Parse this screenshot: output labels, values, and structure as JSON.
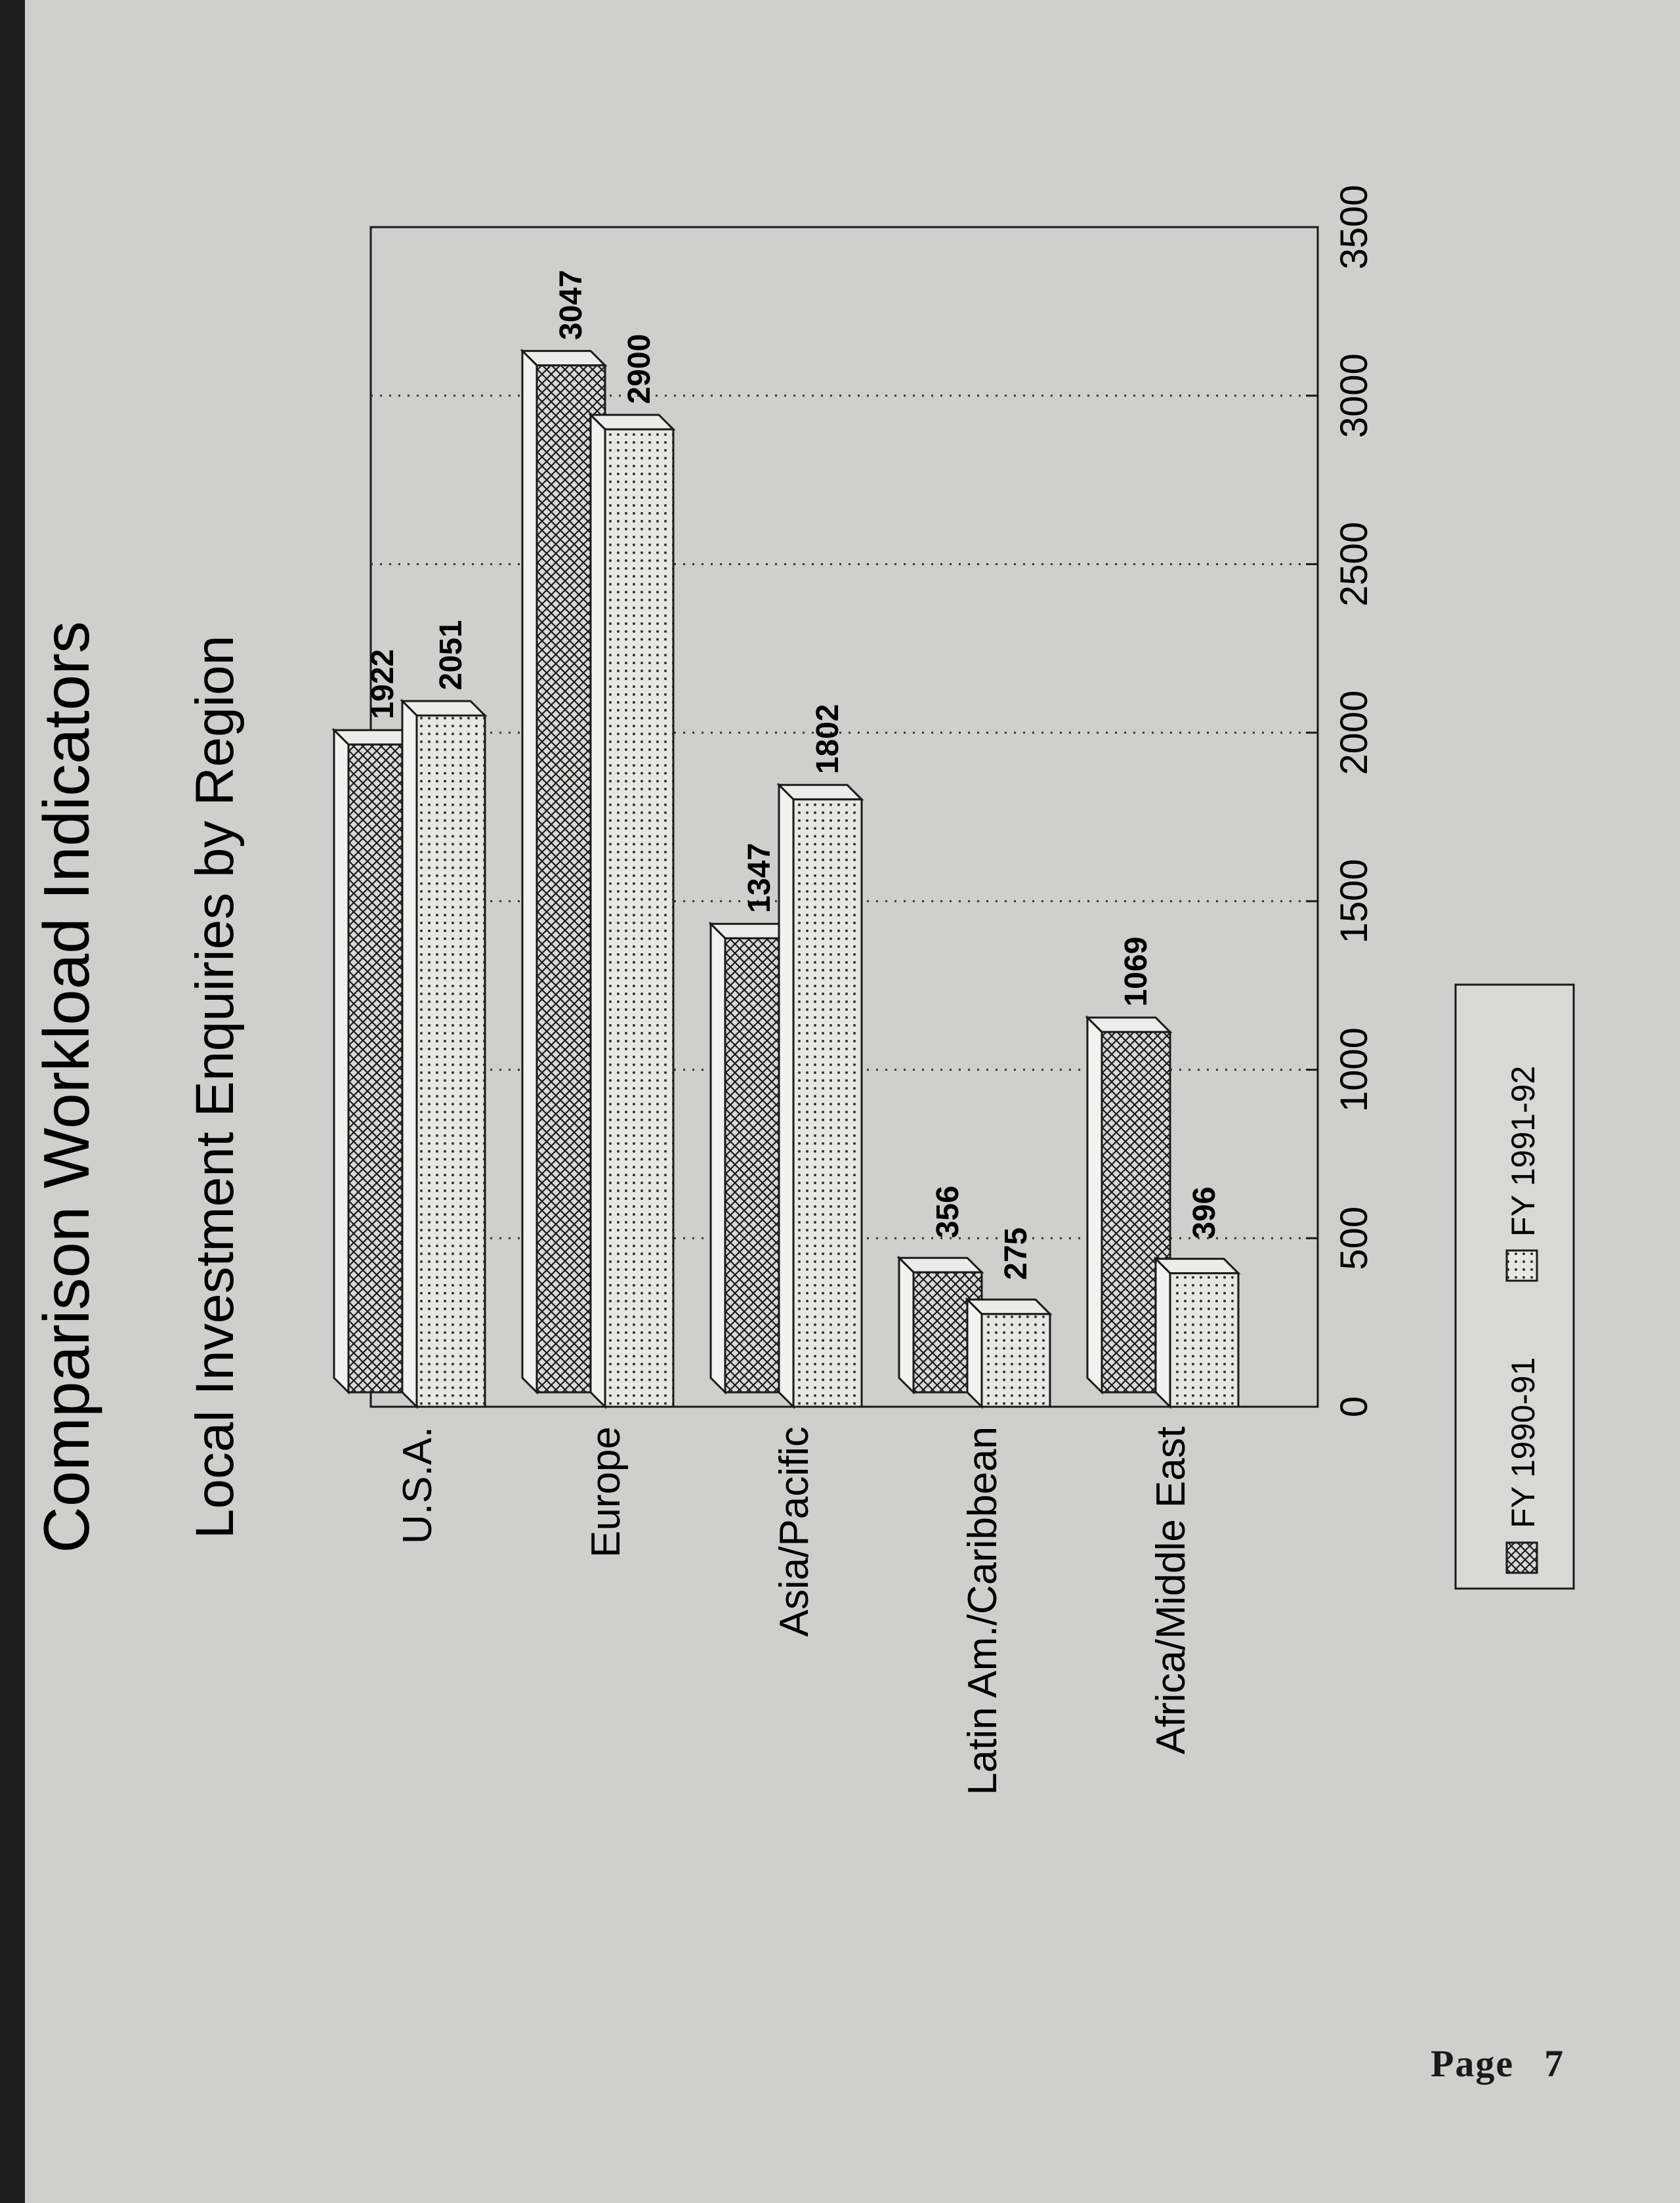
{
  "page": {
    "label": "Page",
    "number": "7"
  },
  "chart_data": {
    "type": "bar",
    "orientation": "horizontal",
    "title": "Comparison Workload Indicators",
    "subtitle": "Local Investment Enquiries by Region",
    "categories": [
      "U.S.A.",
      "Europe",
      "Asia/Pacific",
      "Latin Am./Caribbean",
      "Africa/Middle East"
    ],
    "series": [
      {
        "name": "FY 1990-91",
        "values": [
          1922,
          3047,
          1347,
          356,
          1069
        ],
        "pattern": "crosshatch"
      },
      {
        "name": "FY 1991-92",
        "values": [
          2051,
          2900,
          1802,
          275,
          396
        ],
        "pattern": "dots"
      }
    ],
    "value_axis": {
      "range": [
        0,
        3500
      ],
      "ticks": [
        "0",
        "500",
        "1000",
        "1500",
        "2000",
        "2500",
        "3000",
        "3500"
      ]
    },
    "data_labels": [
      [
        "1922",
        "3047",
        "1347",
        "356",
        "1069"
      ],
      [
        "2051",
        "2900",
        "1802",
        "275",
        "396"
      ]
    ],
    "grid": "dotted vertical lines",
    "legend_position": "bottom",
    "rotation": "chart printed rotated 90 degrees on the page"
  }
}
